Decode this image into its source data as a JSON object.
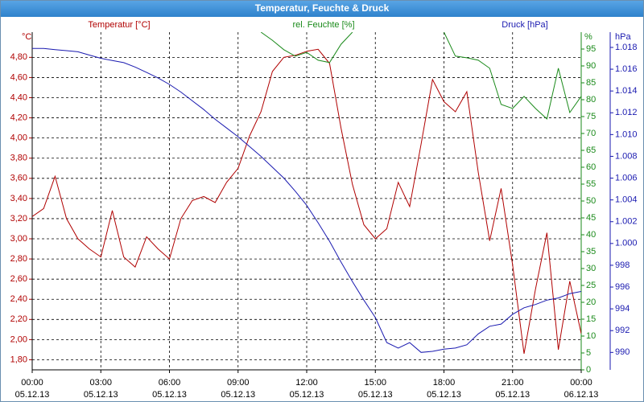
{
  "chart_data": {
    "type": "line",
    "title": "Temperatur, Feuchte & Druck",
    "x": [
      0,
      0.5,
      1,
      1.5,
      2,
      2.5,
      3,
      3.5,
      4,
      4.5,
      5,
      5.5,
      6,
      6.5,
      7,
      7.5,
      8,
      8.5,
      9,
      9.5,
      10,
      10.5,
      11,
      11.5,
      12,
      12.5,
      13,
      13.5,
      14,
      14.5,
      15,
      15.5,
      16,
      16.5,
      17,
      17.5,
      18,
      18.5,
      19,
      19.5,
      20,
      20.5,
      21,
      21.5,
      22,
      22.5,
      23,
      23.5,
      24
    ],
    "xlim": [
      0,
      24
    ],
    "xticks": [
      {
        "value": 0,
        "label": "00:00"
      },
      {
        "value": 3,
        "label": "03:00"
      },
      {
        "value": 6,
        "label": "06:00"
      },
      {
        "value": 9,
        "label": "09:00"
      },
      {
        "value": 12,
        "label": "12:00"
      },
      {
        "value": 15,
        "label": "15:00"
      },
      {
        "value": 18,
        "label": "18:00"
      },
      {
        "value": 21,
        "label": "21:00"
      },
      {
        "value": 24,
        "label": "00:00"
      }
    ],
    "xtick_dates": [
      "05.12.13",
      "05.12.13",
      "05.12.13",
      "05.12.13",
      "05.12.13",
      "05.12.13",
      "05.12.13",
      "05.12.13",
      "06.12.13"
    ],
    "ylabel": "°C",
    "ylim": [
      1.7,
      5.05
    ],
    "yticks": [
      {
        "value": 1.8,
        "label": "1,80"
      },
      {
        "value": 2.0,
        "label": "2,00"
      },
      {
        "value": 2.2,
        "label": "2,20"
      },
      {
        "value": 2.4,
        "label": "2,40"
      },
      {
        "value": 2.6,
        "label": "2,60"
      },
      {
        "value": 2.8,
        "label": "2,80"
      },
      {
        "value": 3.0,
        "label": "3,00"
      },
      {
        "value": 3.2,
        "label": "3,20"
      },
      {
        "value": 3.4,
        "label": "3,40"
      },
      {
        "value": 3.6,
        "label": "3,60"
      },
      {
        "value": 3.8,
        "label": "3,80"
      },
      {
        "value": 4.0,
        "label": "4,00"
      },
      {
        "value": 4.2,
        "label": "4,20"
      },
      {
        "value": 4.4,
        "label": "4,40"
      },
      {
        "value": 4.6,
        "label": "4,60"
      },
      {
        "value": 4.8,
        "label": "4,80"
      }
    ],
    "y2label": "%",
    "y2lim": [
      0,
      100
    ],
    "y2ticks": [
      0,
      5,
      10,
      15,
      20,
      25,
      30,
      35,
      40,
      45,
      50,
      55,
      60,
      65,
      70,
      75,
      80,
      85,
      90,
      95
    ],
    "y3label": "hPa",
    "y3lim": [
      988.4,
      1019.4
    ],
    "y3ticks": [
      990,
      992,
      994,
      996,
      998,
      {
        "value": 1000,
        "label": "1.000"
      },
      {
        "value": 1002,
        "label": "1.002"
      },
      {
        "value": 1004,
        "label": "1.004"
      },
      {
        "value": 1006,
        "label": "1.006"
      },
      {
        "value": 1008,
        "label": "1.008"
      },
      {
        "value": 1010,
        "label": "1.010"
      },
      {
        "value": 1012,
        "label": "1.012"
      },
      {
        "value": 1014,
        "label": "1.014"
      },
      {
        "value": 1016,
        "label": "1.016"
      },
      {
        "value": 1018,
        "label": "1.018"
      }
    ],
    "grid": true,
    "series": [
      {
        "name": "Temperatur [°C]",
        "color": "#b00000",
        "axis": "y",
        "values": [
          3.22,
          3.3,
          3.62,
          3.2,
          3.0,
          2.9,
          2.82,
          3.28,
          2.82,
          2.72,
          3.02,
          2.9,
          2.8,
          3.2,
          3.38,
          3.42,
          3.36,
          3.56,
          3.7,
          4.02,
          4.26,
          4.66,
          4.8,
          4.82,
          4.86,
          4.88,
          4.74,
          4.1,
          3.54,
          3.14,
          3.0,
          3.1,
          3.56,
          3.32,
          3.94,
          4.58,
          4.36,
          4.26,
          4.46,
          3.66,
          2.98,
          3.5,
          2.74,
          1.86,
          2.5,
          3.06,
          1.9,
          2.58,
          2.06
        ]
      },
      {
        "name": "rel. Feuchte [%]",
        "color": "#1a8a1a",
        "axis": "y2",
        "values": [
          null,
          null,
          null,
          null,
          null,
          null,
          null,
          null,
          null,
          null,
          null,
          null,
          null,
          null,
          null,
          null,
          null,
          null,
          null,
          null,
          100,
          97.6,
          94.8,
          92.9,
          94,
          91.7,
          91,
          96.4,
          100,
          null,
          null,
          null,
          null,
          null,
          null,
          null,
          100,
          92.9,
          92.4,
          91.7,
          89.3,
          78.6,
          77.4,
          81,
          77.4,
          74.3,
          89.3,
          76.2,
          81
        ]
      },
      {
        "name": "Druck [hPa]",
        "color": "#1a1ab0",
        "axis": "y3",
        "values": [
          1017.9,
          1017.9,
          1017.8,
          1017.7,
          1017.6,
          1017.3,
          1017.0,
          1016.8,
          1016.6,
          1016.2,
          1015.7,
          1015.2,
          1014.6,
          1013.9,
          1013.1,
          1012.3,
          1011.4,
          1010.6,
          1009.8,
          1008.9,
          1008.0,
          1007.0,
          1006.0,
          1004.8,
          1003.5,
          1001.9,
          1000.2,
          998.3,
          996.5,
          994.8,
          993.2,
          990.9,
          990.4,
          990.9,
          990.0,
          990.1,
          990.3,
          990.4,
          990.7,
          991.7,
          992.4,
          992.6,
          993.5,
          994.1,
          994.4,
          994.8,
          995.0,
          995.4,
          995.6
        ]
      }
    ]
  }
}
